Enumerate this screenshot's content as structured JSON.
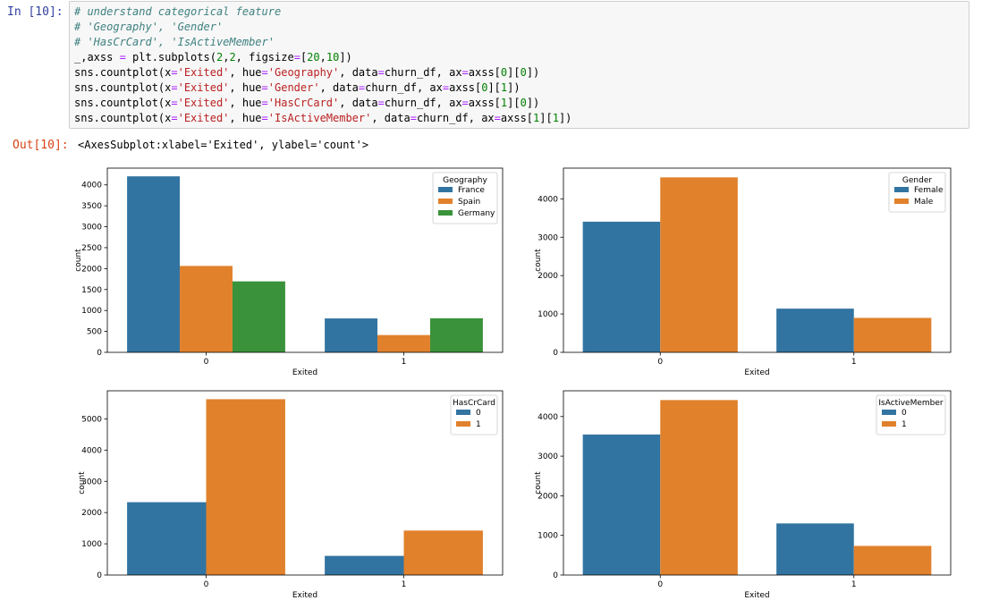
{
  "cell": {
    "in_prompt": "In  [10]:",
    "out_prompt": "Out[10]:",
    "code_lines": [
      [
        {
          "t": "# understand categorical feature",
          "c": "cm"
        }
      ],
      [
        {
          "t": "# 'Geography', 'Gender'",
          "c": "cm"
        }
      ],
      [
        {
          "t": "# 'HasCrCard', 'IsActiveMember'",
          "c": "cm"
        }
      ],
      [
        {
          "t": "_,axss "
        },
        {
          "t": "=",
          "c": "op"
        },
        {
          "t": " plt.subplots("
        },
        {
          "t": "2",
          "c": "nu"
        },
        {
          "t": ","
        },
        {
          "t": "2",
          "c": "nu"
        },
        {
          "t": ", figsize"
        },
        {
          "t": "=",
          "c": "op"
        },
        {
          "t": "["
        },
        {
          "t": "20",
          "c": "nu"
        },
        {
          "t": ","
        },
        {
          "t": "10",
          "c": "nu"
        },
        {
          "t": "])"
        }
      ],
      [
        {
          "t": "sns.countplot(x"
        },
        {
          "t": "=",
          "c": "op"
        },
        {
          "t": "'Exited'",
          "c": "st"
        },
        {
          "t": ", hue"
        },
        {
          "t": "=",
          "c": "op"
        },
        {
          "t": "'Geography'",
          "c": "st"
        },
        {
          "t": ", data"
        },
        {
          "t": "=",
          "c": "op"
        },
        {
          "t": "churn_df, ax"
        },
        {
          "t": "=",
          "c": "op"
        },
        {
          "t": "axss["
        },
        {
          "t": "0",
          "c": "nu"
        },
        {
          "t": "]["
        },
        {
          "t": "0",
          "c": "nu"
        },
        {
          "t": "])"
        }
      ],
      [
        {
          "t": "sns.countplot(x"
        },
        {
          "t": "=",
          "c": "op"
        },
        {
          "t": "'Exited'",
          "c": "st"
        },
        {
          "t": ", hue"
        },
        {
          "t": "=",
          "c": "op"
        },
        {
          "t": "'Gender'",
          "c": "st"
        },
        {
          "t": ", data"
        },
        {
          "t": "=",
          "c": "op"
        },
        {
          "t": "churn_df, ax"
        },
        {
          "t": "=",
          "c": "op"
        },
        {
          "t": "axss["
        },
        {
          "t": "0",
          "c": "nu"
        },
        {
          "t": "]["
        },
        {
          "t": "1",
          "c": "nu"
        },
        {
          "t": "])"
        }
      ],
      [
        {
          "t": "sns.countplot(x"
        },
        {
          "t": "=",
          "c": "op"
        },
        {
          "t": "'Exited'",
          "c": "st"
        },
        {
          "t": ", hue"
        },
        {
          "t": "=",
          "c": "op"
        },
        {
          "t": "'HasCrCard'",
          "c": "st"
        },
        {
          "t": ", data"
        },
        {
          "t": "=",
          "c": "op"
        },
        {
          "t": "churn_df, ax"
        },
        {
          "t": "=",
          "c": "op"
        },
        {
          "t": "axss["
        },
        {
          "t": "1",
          "c": "nu"
        },
        {
          "t": "]["
        },
        {
          "t": "0",
          "c": "nu"
        },
        {
          "t": "])"
        }
      ],
      [
        {
          "t": "sns.countplot(x"
        },
        {
          "t": "=",
          "c": "op"
        },
        {
          "t": "'Exited'",
          "c": "st"
        },
        {
          "t": ", hue"
        },
        {
          "t": "=",
          "c": "op"
        },
        {
          "t": "'IsActiveMember'",
          "c": "st"
        },
        {
          "t": ", data"
        },
        {
          "t": "=",
          "c": "op"
        },
        {
          "t": "churn_df, ax"
        },
        {
          "t": "=",
          "c": "op"
        },
        {
          "t": "axss["
        },
        {
          "t": "1",
          "c": "nu"
        },
        {
          "t": "]["
        },
        {
          "t": "1",
          "c": "nu"
        },
        {
          "t": "])"
        }
      ]
    ],
    "output_text": "<AxesSubplot:xlabel='Exited', ylabel='count'>"
  },
  "colors": {
    "blue": "#3274a1",
    "orange": "#e1812c",
    "green": "#3a923a"
  },
  "chart_data": [
    {
      "type": "bar",
      "xlabel": "Exited",
      "ylabel": "count",
      "categories": [
        "0",
        "1"
      ],
      "legend_title": "Geography",
      "legend_position": "upper-right",
      "ylim": [
        0,
        4400
      ],
      "yticks": [
        0,
        500,
        1000,
        1500,
        2000,
        2500,
        3000,
        3500,
        4000
      ],
      "series": [
        {
          "name": "France",
          "values": [
            4204,
            810
          ],
          "color": "#3274a1"
        },
        {
          "name": "Spain",
          "values": [
            2064,
            413
          ],
          "color": "#e1812c"
        },
        {
          "name": "Germany",
          "values": [
            1695,
            814
          ],
          "color": "#3a923a"
        }
      ]
    },
    {
      "type": "bar",
      "xlabel": "Exited",
      "ylabel": "count",
      "categories": [
        "0",
        "1"
      ],
      "legend_title": "Gender",
      "legend_position": "upper-right",
      "ylim": [
        0,
        4800
      ],
      "yticks": [
        0,
        1000,
        2000,
        3000,
        4000
      ],
      "series": [
        {
          "name": "Female",
          "values": [
            3404,
            1139
          ],
          "color": "#3274a1"
        },
        {
          "name": "Male",
          "values": [
            4559,
            898
          ],
          "color": "#e1812c"
        }
      ]
    },
    {
      "type": "bar",
      "xlabel": "Exited",
      "ylabel": "count",
      "categories": [
        "0",
        "1"
      ],
      "legend_title": "HasCrCard",
      "legend_position": "upper-right",
      "ylim": [
        0,
        5900
      ],
      "yticks": [
        0,
        1000,
        2000,
        3000,
        4000,
        5000
      ],
      "series": [
        {
          "name": "0",
          "values": [
            2332,
            613
          ],
          "color": "#3274a1"
        },
        {
          "name": "1",
          "values": [
            5631,
            1424
          ],
          "color": "#e1812c"
        }
      ]
    },
    {
      "type": "bar",
      "xlabel": "Exited",
      "ylabel": "count",
      "categories": [
        "0",
        "1"
      ],
      "legend_title": "IsActiveMember",
      "legend_position": "upper-right",
      "ylim": [
        0,
        4650
      ],
      "yticks": [
        0,
        1000,
        2000,
        3000,
        4000
      ],
      "series": [
        {
          "name": "0",
          "values": [
            3547,
            1302
          ],
          "color": "#3274a1"
        },
        {
          "name": "1",
          "values": [
            4416,
            735
          ],
          "color": "#e1812c"
        }
      ]
    }
  ]
}
